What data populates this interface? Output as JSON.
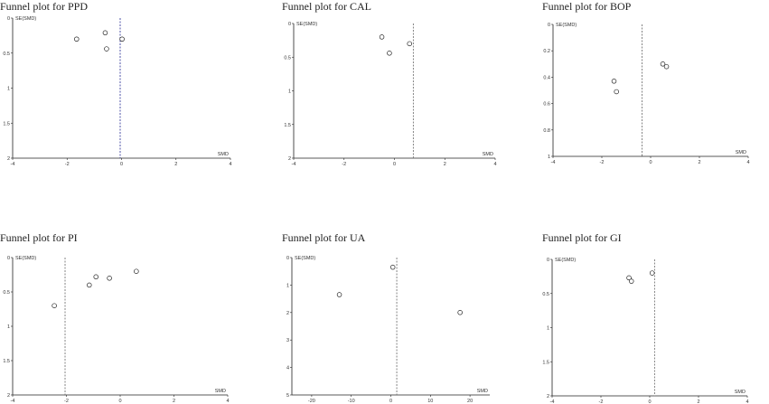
{
  "chart_data": [
    {
      "type": "scatter",
      "title": "Funnel plot for PPD",
      "xlabel": "SMD",
      "ylabel": "SE(SMD)",
      "xlim": [
        -4,
        4
      ],
      "ylim": [
        0,
        2
      ],
      "x_ticks": [
        "-4",
        "-2",
        "0",
        "2",
        "4"
      ],
      "y_ticks": [
        "0",
        "0.5",
        "1",
        "1.5",
        "2"
      ],
      "y_tick_values": [
        0,
        0.5,
        1,
        1.5,
        2
      ],
      "y_reversed": true,
      "x_tick_values": [
        -4,
        -2,
        0,
        2,
        4
      ],
      "pooled_line_x": -0.05,
      "pooled_line_color": "#3a3f9f",
      "points": [
        {
          "x": -1.65,
          "y": 0.3
        },
        {
          "x": -0.6,
          "y": 0.21
        },
        {
          "x": -0.55,
          "y": 0.44
        },
        {
          "x": 0.02,
          "y": 0.3
        }
      ]
    },
    {
      "type": "scatter",
      "title": "Funnel plot for CAL",
      "xlabel": "SMD",
      "ylabel": "SE(SMD)",
      "xlim": [
        -4,
        4
      ],
      "ylim": [
        0,
        2
      ],
      "x_ticks": [
        "-4",
        "-2",
        "0",
        "2",
        "4"
      ],
      "y_ticks": [
        "0",
        "0.5",
        "1",
        "1.5",
        "2"
      ],
      "y_tick_values": [
        0,
        0.5,
        1,
        1.5,
        2
      ],
      "y_reversed": true,
      "x_tick_values": [
        -4,
        -2,
        0,
        2,
        4
      ],
      "pooled_line_x": 0.75,
      "pooled_line_color": "#777777",
      "points": [
        {
          "x": -0.5,
          "y": 0.2
        },
        {
          "x": -0.2,
          "y": 0.44
        },
        {
          "x": 0.6,
          "y": 0.3
        }
      ]
    },
    {
      "type": "scatter",
      "title": "Funnel plot for BOP",
      "xlabel": "SMD",
      "ylabel": "SE(SMD)",
      "xlim": [
        -4,
        4
      ],
      "ylim": [
        0,
        1
      ],
      "x_ticks": [
        "-4",
        "-2",
        "0",
        "2",
        "4"
      ],
      "y_ticks": [
        "0",
        "0.2",
        "0.4",
        "0.6",
        "0.8",
        "1"
      ],
      "y_tick_values": [
        0,
        0.2,
        0.4,
        0.6,
        0.8,
        1
      ],
      "y_reversed": true,
      "x_tick_values": [
        -4,
        -2,
        0,
        2,
        4
      ],
      "pooled_line_x": -0.35,
      "pooled_line_color": "#777777",
      "points": [
        {
          "x": -1.5,
          "y": 0.43
        },
        {
          "x": -1.4,
          "y": 0.51
        },
        {
          "x": 0.5,
          "y": 0.3
        },
        {
          "x": 0.65,
          "y": 0.32
        }
      ]
    },
    {
      "type": "scatter",
      "title": "Funnel plot for PI",
      "xlabel": "SMD",
      "ylabel": "SE(SMD)",
      "xlim": [
        -4,
        4
      ],
      "ylim": [
        0,
        2
      ],
      "x_ticks": [
        "-4",
        "-2",
        "0",
        "2",
        "4"
      ],
      "y_ticks": [
        "0",
        "0.5",
        "1",
        "1.5",
        "2"
      ],
      "y_tick_values": [
        0,
        0.5,
        1,
        1.5,
        2
      ],
      "y_reversed": true,
      "x_tick_values": [
        -4,
        -2,
        0,
        2,
        4
      ],
      "pooled_line_x": -2.05,
      "pooled_line_color": "#777777",
      "points": [
        {
          "x": -2.45,
          "y": 0.7
        },
        {
          "x": -1.15,
          "y": 0.4
        },
        {
          "x": -0.9,
          "y": 0.28
        },
        {
          "x": -0.4,
          "y": 0.3
        },
        {
          "x": 0.6,
          "y": 0.2
        }
      ]
    },
    {
      "type": "scatter",
      "title": "Funnel plot for UA",
      "xlabel": "SMD",
      "ylabel": "SE(SMD)",
      "xlim": [
        -25,
        25
      ],
      "ylim": [
        0,
        5
      ],
      "x_ticks": [
        "-20",
        "-10",
        "0",
        "10",
        "20"
      ],
      "x_tick_values": [
        -20,
        -10,
        0,
        10,
        20
      ],
      "y_ticks": [
        "0",
        "1",
        "2",
        "3",
        "4",
        "5"
      ],
      "y_tick_values": [
        0,
        1,
        2,
        3,
        4,
        5
      ],
      "y_reversed": true,
      "pooled_line_x": 1.5,
      "pooled_line_color": "#777777",
      "points": [
        {
          "x": -13,
          "y": 1.35
        },
        {
          "x": 0.5,
          "y": 0.35
        },
        {
          "x": 17.5,
          "y": 2
        }
      ]
    },
    {
      "type": "scatter",
      "title": "Funnel plot for GI",
      "xlabel": "SMD",
      "ylabel": "SE(SMD)",
      "xlim": [
        -4,
        4
      ],
      "ylim": [
        0,
        2
      ],
      "x_ticks": [
        "-4",
        "-2",
        "0",
        "2",
        "4"
      ],
      "y_ticks": [
        "0",
        "0.5",
        "1",
        "1.5",
        "2"
      ],
      "y_tick_values": [
        0,
        0.5,
        1,
        1.5,
        2
      ],
      "y_reversed": true,
      "x_tick_values": [
        -4,
        -2,
        0,
        2,
        4
      ],
      "pooled_line_x": 0.2,
      "pooled_line_color": "#777777",
      "points": [
        {
          "x": -0.85,
          "y": 0.27
        },
        {
          "x": -0.75,
          "y": 0.32
        },
        {
          "x": 0.1,
          "y": 0.2
        }
      ]
    }
  ]
}
